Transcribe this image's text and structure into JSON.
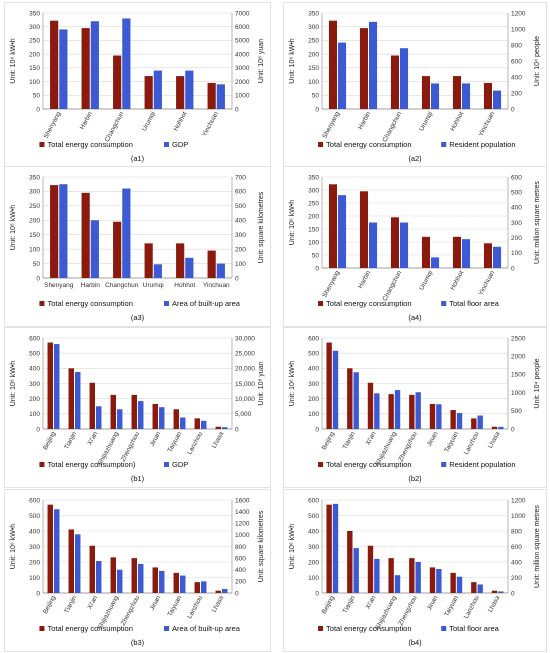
{
  "colors": {
    "series1": "#8b1a0e",
    "series2": "#3c5ad3",
    "grid": "#d9d9d9",
    "axis": "#888888"
  },
  "chart_data": [
    {
      "id": "a1",
      "type": "bar",
      "caption": "(a1)",
      "categories": [
        "Shenyang",
        "Harbin",
        "Changchun",
        "Urumqi",
        "Hohhot",
        "Yinchuan"
      ],
      "series": [
        {
          "name": "Total energy consumption",
          "values": [
            322,
            295,
            195,
            120,
            120,
            95
          ],
          "axis": "left"
        },
        {
          "name": "GDP",
          "values": [
            5800,
            6400,
            6600,
            2800,
            2800,
            1800
          ],
          "axis": "right"
        }
      ],
      "ylabel": "Unit: 10⁶ kW•h",
      "ylim": [
        0,
        350
      ],
      "yticks": [
        0,
        50,
        100,
        150,
        200,
        250,
        300,
        350
      ],
      "y2label": "Unit: 10⁸ yuan",
      "y2lim": [
        0,
        7000
      ],
      "y2ticks": [
        0,
        1000,
        2000,
        3000,
        4000,
        5000,
        6000,
        7000
      ],
      "rotate_labels": true
    },
    {
      "id": "a2",
      "type": "bar",
      "caption": "(a2)",
      "categories": [
        "Shenyang",
        "Harbin",
        "Changchun",
        "Urumqi",
        "Hohhot",
        "Yinchuan"
      ],
      "series": [
        {
          "name": "Total energy consumption",
          "values": [
            322,
            295,
            195,
            120,
            120,
            95
          ],
          "axis": "left"
        },
        {
          "name": "Resident population",
          "values": [
            830,
            1090,
            760,
            320,
            320,
            230
          ],
          "axis": "right"
        }
      ],
      "ylabel": "Unit: 10⁶ kW•h",
      "ylim": [
        0,
        350
      ],
      "yticks": [
        0,
        50,
        100,
        150,
        200,
        250,
        300,
        350
      ],
      "y2label": "Unit: 10⁴ people",
      "y2lim": [
        0,
        1200
      ],
      "y2ticks": [
        0,
        200,
        400,
        600,
        800,
        1000,
        1200
      ],
      "rotate_labels": true
    },
    {
      "id": "a3",
      "type": "bar",
      "caption": "(a3)",
      "categories": [
        "Shenyang",
        "Harbin",
        "Changchun",
        "Urumqi",
        "Hohhot",
        "Yinchuan"
      ],
      "series": [
        {
          "name": "Total energy consumption",
          "values": [
            322,
            295,
            195,
            120,
            120,
            95
          ],
          "axis": "left"
        },
        {
          "name": "Area of built-up area",
          "values": [
            650,
            400,
            620,
            95,
            140,
            100
          ],
          "axis": "right"
        }
      ],
      "ylabel": "Unit: 10⁶ kW•h",
      "ylim": [
        0,
        350
      ],
      "yticks": [
        0,
        50,
        100,
        150,
        200,
        250,
        300,
        350
      ],
      "y2label": "Unit: square kilometres",
      "y2lim": [
        0,
        700
      ],
      "y2ticks": [
        0,
        100,
        200,
        300,
        400,
        500,
        600,
        700
      ],
      "rotate_labels": false
    },
    {
      "id": "a4",
      "type": "bar",
      "caption": "(a4)",
      "categories": [
        "Shenyang",
        "Harbin",
        "Changchun",
        "Urumqi",
        "Hohhot",
        "Yinchuan"
      ],
      "series": [
        {
          "name": "Total energy consumption",
          "values": [
            322,
            295,
            195,
            120,
            120,
            95
          ],
          "axis": "left"
        },
        {
          "name": "Total floor area",
          "values": [
            480,
            300,
            300,
            70,
            190,
            140
          ],
          "axis": "right"
        }
      ],
      "ylabel": "Unit: 10⁶ kW•h",
      "ylim": [
        0,
        350
      ],
      "yticks": [
        0,
        50,
        100,
        150,
        200,
        250,
        300,
        350
      ],
      "y2label": "Unit: million square metres",
      "y2lim": [
        0,
        600
      ],
      "y2ticks": [
        0,
        100,
        200,
        300,
        400,
        500,
        600
      ],
      "rotate_labels": true
    },
    {
      "id": "b1",
      "type": "bar",
      "caption": "(b1)",
      "categories": [
        "Beijing",
        "Tianjin",
        "Xi'an",
        "Shijiazhuang",
        "Zhengzhou",
        "Jinan",
        "Taiyuan",
        "Lanzhou",
        "Lhasa"
      ],
      "series": [
        {
          "name": "Total energy consumption)",
          "values": [
            570,
            400,
            305,
            225,
            225,
            165,
            130,
            70,
            15
          ],
          "axis": "left"
        },
        {
          "name": "GDP",
          "values": [
            28000,
            18800,
            7500,
            6500,
            9200,
            7200,
            3800,
            2700,
            600
          ],
          "axis": "right"
        }
      ],
      "ylabel": "Unit: 10⁶ kW•h",
      "ylim": [
        0,
        600
      ],
      "yticks": [
        0,
        100,
        200,
        300,
        400,
        500,
        600
      ],
      "y2label": "Unit: 10⁸ yuan",
      "y2lim": [
        0,
        30000
      ],
      "y2ticks": [
        0,
        5000,
        10000,
        15000,
        20000,
        25000,
        30000
      ],
      "y2ticklabels": [
        "0",
        "5,000",
        "10,000",
        "15,000",
        "20,000",
        "25,000",
        "30,000"
      ],
      "rotate_labels": true
    },
    {
      "id": "b2",
      "type": "bar",
      "caption": "(b2)",
      "categories": [
        "Beijing",
        "Tianjin",
        "Xi'an",
        "Shijiazhuang",
        "Zhengzhou",
        "Jinan",
        "Taiyuan",
        "Lanzhou",
        "Lhasa"
      ],
      "series": [
        {
          "name": "Total energy consumption",
          "values": [
            570,
            400,
            305,
            230,
            225,
            165,
            125,
            70,
            15
          ],
          "axis": "left"
        },
        {
          "name": "Resident population",
          "values": [
            2150,
            1560,
            980,
            1070,
            1010,
            680,
            440,
            370,
            60
          ],
          "axis": "right"
        }
      ],
      "ylabel": "Unit: 10⁶ kW•h",
      "ylim": [
        0,
        600
      ],
      "yticks": [
        0,
        100,
        200,
        300,
        400,
        500,
        600
      ],
      "y2label": "Unit: 10⁴ people",
      "y2lim": [
        0,
        2500
      ],
      "y2ticks": [
        0,
        500,
        1000,
        1500,
        2000,
        2500
      ],
      "rotate_labels": true
    },
    {
      "id": "b3",
      "type": "bar",
      "caption": "(b3)",
      "categories": [
        "Beijing",
        "Tianjin",
        "Xi'an",
        "Shijiazhuang",
        "Zhengzhou",
        "Jinan",
        "Taiyuan",
        "Lanzhou",
        "Lhasa"
      ],
      "series": [
        {
          "name": "Total energy consumption",
          "values": [
            570,
            410,
            305,
            230,
            225,
            165,
            130,
            70,
            15
          ],
          "axis": "left"
        },
        {
          "name": "Area of built-up area",
          "values": [
            1440,
            1010,
            550,
            400,
            500,
            380,
            300,
            200,
            70
          ],
          "axis": "right"
        }
      ],
      "ylabel": "Unit: 10⁶ kW•h",
      "ylim": [
        0,
        600
      ],
      "yticks": [
        0,
        100,
        200,
        300,
        400,
        500,
        600
      ],
      "y2label": "Unit: square kilometres",
      "y2lim": [
        0,
        1600
      ],
      "y2ticks": [
        0,
        200,
        400,
        600,
        800,
        1000,
        1200,
        1400,
        1600
      ],
      "rotate_labels": true
    },
    {
      "id": "b4",
      "type": "bar",
      "caption": "(b4)",
      "categories": [
        "Beijing",
        "Tianjin",
        "Xi'an",
        "Shijiazhuang",
        "Zhengzhou",
        "Jinan",
        "Taiyuan",
        "Lanzhou",
        "Lhasa"
      ],
      "series": [
        {
          "name": "Total energy consumption",
          "values": [
            570,
            400,
            305,
            225,
            225,
            165,
            130,
            70,
            15
          ],
          "axis": "left"
        },
        {
          "name": "Total floor area",
          "values": [
            1150,
            580,
            440,
            230,
            400,
            310,
            210,
            110,
            20
          ],
          "axis": "right"
        }
      ],
      "ylabel": "Unit: 10⁶ kW•h",
      "ylim": [
        0,
        600
      ],
      "yticks": [
        0,
        100,
        200,
        300,
        400,
        500,
        600
      ],
      "y2label": "Unit: million square metres",
      "y2lim": [
        0,
        1200
      ],
      "y2ticks": [
        0,
        200,
        400,
        600,
        800,
        1000,
        1200
      ],
      "rotate_labels": true
    }
  ]
}
